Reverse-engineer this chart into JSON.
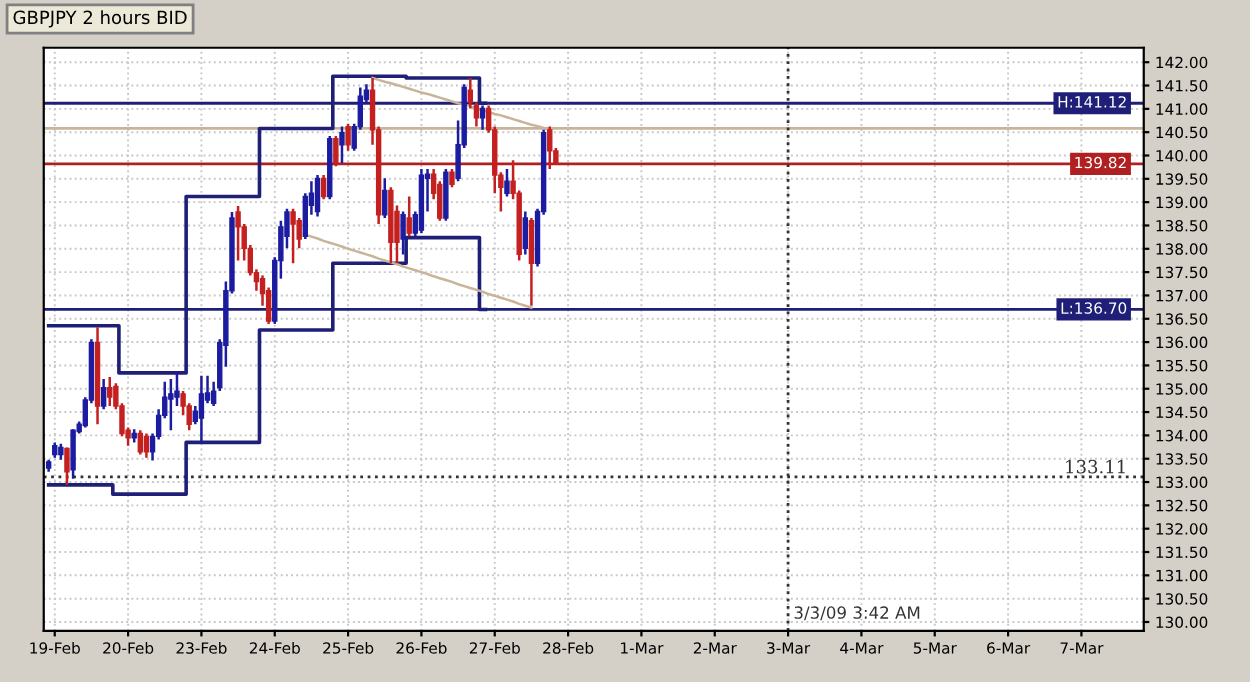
{
  "chart_data": {
    "type": "candlestick",
    "title": "GBPJPY 2 hours BID",
    "categories": [
      null,
      "19-Feb",
      null,
      null,
      null,
      null,
      null,
      null,
      null,
      null,
      null,
      null,
      null,
      "20-Feb",
      null,
      null,
      null,
      null,
      null,
      null,
      null,
      null,
      null,
      null,
      null,
      "23-Feb",
      null,
      null,
      null,
      null,
      null,
      null,
      null,
      null,
      null,
      null,
      null,
      "24-Feb",
      null,
      null,
      null,
      null,
      null,
      null,
      null,
      null,
      null,
      null,
      null,
      "25-Feb",
      null,
      null,
      null,
      null,
      null,
      null,
      null,
      null,
      null,
      null,
      null,
      "26-Feb",
      null,
      null,
      null,
      null,
      null,
      null,
      null,
      null,
      null,
      null,
      null,
      "27-Feb",
      null,
      null,
      null,
      null,
      null,
      null,
      null,
      null,
      null,
      null,
      null,
      "28-Feb",
      null,
      null,
      null,
      null,
      null,
      null,
      null,
      null,
      null,
      null,
      null,
      "1-Mar",
      null,
      null,
      null,
      null,
      null,
      null,
      null,
      null,
      null,
      null,
      null,
      "2-Mar",
      null,
      null,
      null,
      null,
      null,
      null,
      null,
      null,
      null,
      null,
      null,
      "3-Mar",
      null,
      null,
      null,
      null,
      null,
      null,
      null,
      null,
      null,
      null,
      null,
      "4-Mar",
      null,
      null,
      null,
      null,
      null,
      null,
      null,
      null,
      null,
      null,
      null,
      "5-Mar",
      null,
      null,
      null,
      null,
      null,
      null,
      null,
      null,
      null,
      null,
      null,
      "6-Mar",
      null,
      null,
      null,
      null,
      null,
      null,
      null,
      null,
      null,
      null,
      null,
      "7-Mar",
      null,
      null,
      null,
      null,
      null,
      null,
      null,
      null,
      null,
      null
    ],
    "ohlc": [
      [
        133.3,
        133.48,
        133.22,
        133.43
      ],
      [
        133.59,
        133.85,
        133.52,
        133.78
      ],
      [
        133.59,
        133.82,
        133.48,
        133.74
      ],
      [
        133.72,
        133.74,
        132.94,
        133.22
      ],
      [
        133.26,
        134.13,
        133.07,
        134.11
      ],
      [
        134.08,
        134.3,
        134.04,
        134.24
      ],
      [
        134.21,
        134.82,
        134.17,
        134.76
      ],
      [
        134.76,
        136.06,
        134.69,
        135.99
      ],
      [
        135.99,
        136.32,
        134.24,
        134.63
      ],
      [
        134.63,
        135.21,
        134.56,
        135.02
      ],
      [
        135.02,
        135.25,
        134.63,
        134.82
      ],
      [
        135.05,
        135.12,
        134.56,
        134.63
      ],
      [
        134.63,
        134.69,
        133.98,
        134.04
      ],
      [
        134.11,
        134.17,
        133.78,
        133.95
      ],
      [
        133.95,
        134.13,
        133.85,
        134.04
      ],
      [
        134.04,
        134.11,
        133.59,
        133.65
      ],
      [
        133.98,
        134.04,
        133.52,
        133.65
      ],
      [
        133.65,
        134.04,
        133.46,
        133.98
      ],
      [
        133.98,
        134.56,
        133.91,
        134.43
      ],
      [
        134.43,
        135.15,
        134.37,
        134.82
      ],
      [
        134.78,
        135.21,
        134.11,
        134.89
      ],
      [
        134.82,
        135.34,
        134.63,
        134.95
      ],
      [
        134.89,
        134.95,
        134.43,
        134.63
      ],
      [
        134.63,
        134.69,
        134.11,
        134.24
      ],
      [
        134.3,
        134.63,
        134.24,
        134.52
      ],
      [
        134.37,
        135.28,
        133.85,
        134.89
      ],
      [
        134.76,
        135.28,
        134.69,
        134.91
      ],
      [
        134.69,
        135.15,
        134.63,
        134.95
      ],
      [
        135.02,
        136.06,
        134.95,
        135.99
      ],
      [
        135.93,
        137.3,
        135.47,
        137.1
      ],
      [
        137.1,
        138.79,
        137.04,
        138.66
      ],
      [
        138.79,
        138.92,
        137.75,
        138.47
      ],
      [
        138.47,
        138.53,
        137.75,
        138.01
      ],
      [
        138.01,
        138.08,
        137.43,
        137.49
      ],
      [
        137.49,
        137.56,
        137.1,
        137.3
      ],
      [
        137.36,
        137.43,
        136.78,
        137.04
      ],
      [
        137.1,
        137.17,
        136.39,
        136.45
      ],
      [
        136.45,
        137.82,
        136.39,
        137.75
      ],
      [
        137.75,
        138.6,
        137.36,
        138.47
      ],
      [
        138.27,
        138.86,
        138.01,
        138.79
      ],
      [
        138.79,
        138.86,
        137.69,
        138.53
      ],
      [
        138.6,
        138.66,
        138.01,
        138.21
      ],
      [
        138.27,
        139.19,
        138.21,
        139.12
      ],
      [
        138.93,
        139.45,
        138.73,
        139.19
      ],
      [
        138.8,
        139.58,
        138.69,
        139.51
      ],
      [
        139.51,
        139.58,
        139.06,
        139.12
      ],
      [
        139.12,
        140.42,
        139.06,
        140.36
      ],
      [
        140.36,
        140.42,
        139.77,
        139.84
      ],
      [
        140.23,
        140.62,
        139.84,
        140.49
      ],
      [
        140.62,
        140.68,
        140.1,
        140.23
      ],
      [
        140.16,
        140.68,
        140.1,
        140.62
      ],
      [
        140.62,
        141.46,
        140.55,
        141.27
      ],
      [
        141.2,
        141.53,
        141.14,
        141.4
      ],
      [
        141.4,
        141.66,
        140.23,
        140.55
      ],
      [
        140.55,
        140.62,
        138.53,
        138.73
      ],
      [
        138.73,
        139.51,
        138.66,
        139.25
      ],
      [
        139.25,
        139.32,
        137.69,
        138.14
      ],
      [
        138.8,
        138.93,
        137.69,
        138.14
      ],
      [
        138.21,
        138.8,
        137.88,
        138.73
      ],
      [
        138.66,
        139.12,
        138.27,
        138.34
      ],
      [
        138.34,
        138.8,
        138.27,
        138.73
      ],
      [
        138.4,
        139.71,
        138.34,
        139.58
      ],
      [
        139.51,
        139.71,
        138.8,
        139.6
      ],
      [
        139.6,
        139.71,
        139.06,
        139.19
      ],
      [
        139.38,
        139.45,
        138.6,
        138.66
      ],
      [
        138.66,
        139.71,
        138.6,
        139.64
      ],
      [
        139.64,
        139.71,
        139.32,
        139.38
      ],
      [
        139.51,
        140.75,
        139.45,
        140.23
      ],
      [
        140.23,
        141.53,
        140.16,
        141.46
      ],
      [
        141.4,
        141.66,
        141.01,
        141.14
      ],
      [
        141.07,
        141.14,
        140.62,
        140.81
      ],
      [
        140.81,
        141.07,
        140.55,
        141.01
      ],
      [
        141.01,
        141.07,
        140.49,
        140.55
      ],
      [
        140.55,
        140.62,
        139.19,
        139.58
      ],
      [
        139.58,
        139.64,
        138.8,
        139.32
      ],
      [
        139.19,
        139.71,
        139.12,
        139.45
      ],
      [
        139.45,
        139.9,
        139.06,
        139.19
      ],
      [
        139.19,
        139.25,
        137.75,
        137.88
      ],
      [
        138.01,
        138.8,
        137.88,
        138.66
      ],
      [
        138.6,
        138.66,
        136.78,
        137.69
      ],
      [
        137.69,
        138.86,
        137.62,
        138.8
      ],
      [
        138.8,
        140.55,
        138.73,
        140.49
      ],
      [
        140.55,
        140.62,
        139.71,
        140.1
      ],
      [
        140.1,
        140.16,
        139.8,
        139.82
      ],
      null,
      null,
      null,
      null,
      null,
      null,
      null,
      null,
      null,
      null,
      null,
      null,
      null,
      null,
      null,
      null,
      null,
      null,
      null,
      null,
      null,
      null,
      null,
      null,
      null,
      null,
      null,
      null,
      null,
      null,
      null,
      null,
      null,
      null,
      null,
      null,
      null,
      null,
      null,
      null,
      null,
      null,
      null,
      null,
      null,
      null,
      null,
      null,
      null,
      null,
      null,
      null,
      null,
      null,
      null,
      null,
      null,
      null,
      null,
      null,
      null,
      null,
      null,
      null,
      null,
      null,
      null,
      null,
      null,
      null,
      null,
      null,
      null,
      null,
      null,
      null,
      null,
      null,
      null,
      null,
      null,
      null,
      null,
      null,
      null,
      null,
      null,
      null,
      null,
      null,
      null,
      null,
      null,
      null,
      null,
      null
    ],
    "colors": [
      "#1c1ca0",
      "#1c1ca0",
      "#1c1ca0",
      "#c42020",
      "#1c1ca0",
      "#1c1ca0",
      "#1c1ca0",
      "#1c1ca0",
      "#c42020",
      "#1c1ca0",
      "#c42020",
      "#c42020",
      "#c42020",
      "#c42020",
      "#1c1ca0",
      "#c42020",
      "#c42020",
      "#1c1ca0",
      "#1c1ca0",
      "#1c1ca0",
      "#1c1ca0",
      "#1c1ca0",
      "#c42020",
      "#c42020",
      "#1c1ca0",
      "#1c1ca0",
      "#1c1ca0",
      "#1c1ca0",
      "#1c1ca0",
      "#1c1ca0",
      "#1c1ca0",
      "#c42020",
      "#c42020",
      "#c42020",
      "#c42020",
      "#c42020",
      "#c42020",
      "#1c1ca0",
      "#1c1ca0",
      "#1c1ca0",
      "#c42020",
      "#c42020",
      "#1c1ca0",
      "#1c1ca0",
      "#1c1ca0",
      "#c42020",
      "#1c1ca0",
      "#c42020",
      "#1c1ca0",
      "#c42020",
      "#1c1ca0",
      "#1c1ca0",
      "#1c1ca0",
      "#c42020",
      "#c42020",
      "#1c1ca0",
      "#c42020",
      "#c42020",
      "#1c1ca0",
      "#c42020",
      "#1c1ca0",
      "#1c1ca0",
      "#1c1ca0",
      "#c42020",
      "#c42020",
      "#1c1ca0",
      "#c42020",
      "#1c1ca0",
      "#1c1ca0",
      "#c42020",
      "#c42020",
      "#1c1ca0",
      "#c42020",
      "#c42020",
      "#c42020",
      "#1c1ca0",
      "#c42020",
      "#c42020",
      "#1c1ca0",
      "#c42020",
      "#1c1ca0",
      "#1c1ca0",
      "#c42020",
      "#c42020",
      null,
      null,
      null,
      null,
      null,
      null,
      null,
      null,
      null,
      null,
      null,
      null,
      null,
      null,
      null,
      null,
      null,
      null,
      null,
      null,
      null,
      null,
      null,
      null,
      null,
      null,
      null,
      null,
      null,
      null,
      null,
      null,
      null,
      null,
      null,
      null,
      null,
      null,
      null,
      null,
      null,
      null,
      null,
      null,
      null,
      null,
      null,
      null,
      null,
      null,
      null,
      null,
      null,
      null,
      null,
      null,
      null,
      null,
      null,
      null,
      null,
      null,
      null,
      null,
      null,
      null,
      null,
      null,
      null,
      null,
      null,
      null,
      null,
      null,
      null,
      null,
      null,
      null,
      null,
      null,
      null,
      null,
      null,
      null,
      null,
      null,
      null,
      null,
      null,
      null,
      null,
      null,
      null,
      null,
      null,
      null
    ],
    "series": [
      {
        "type": "step",
        "color": "#1f1f78",
        "values": [
          136.35,
          136.35,
          136.35,
          136.35,
          136.35,
          136.35,
          136.35,
          136.35,
          136.35,
          136.35,
          136.35,
          136.35,
          135.34,
          135.34,
          135.34,
          135.34,
          135.34,
          135.34,
          135.34,
          135.34,
          135.34,
          135.34,
          135.34,
          139.12,
          139.12,
          139.12,
          139.12,
          139.12,
          139.12,
          139.12,
          139.12,
          139.12,
          139.12,
          139.12,
          139.12,
          140.58,
          140.58,
          140.58,
          140.58,
          140.58,
          140.58,
          140.58,
          140.58,
          140.58,
          140.58,
          140.58,
          140.58,
          141.7,
          141.7,
          141.7,
          141.7,
          141.7,
          141.7,
          141.7,
          141.7,
          141.7,
          141.7,
          141.7,
          141.7,
          141.66,
          141.66,
          141.66,
          141.66,
          141.66,
          141.66,
          141.66,
          141.66,
          141.66,
          141.66,
          141.66,
          141.66,
          141.12,
          null,
          null,
          null,
          null,
          null,
          null,
          null,
          null,
          null,
          null,
          null,
          null,
          null,
          null,
          null,
          null,
          null,
          null,
          null,
          null,
          null,
          null,
          null,
          null,
          null,
          null,
          null,
          null,
          null,
          null,
          null,
          null,
          null,
          null,
          null,
          null,
          null,
          null,
          null,
          null,
          null,
          null,
          null,
          null,
          null,
          null,
          null,
          null,
          null,
          null,
          null,
          null,
          null,
          null,
          null,
          null,
          null,
          null,
          null,
          null,
          null,
          null,
          null,
          null,
          null,
          null,
          null,
          null,
          null,
          null,
          null,
          null,
          null,
          null,
          null,
          null,
          null,
          null,
          null,
          null,
          null,
          null,
          null,
          null,
          null,
          null,
          null,
          null,
          null,
          null,
          null,
          null,
          null,
          null,
          null,
          null,
          null,
          null,
          null,
          null,
          null,
          null,
          null,
          null,
          null,
          null,
          null,
          null
        ]
      },
      {
        "type": "step",
        "color": "#1f1f78",
        "values": [
          132.94,
          132.94,
          132.94,
          132.94,
          132.94,
          132.94,
          132.94,
          132.94,
          132.94,
          132.94,
          132.94,
          132.74,
          132.74,
          132.74,
          132.74,
          132.74,
          132.74,
          132.74,
          132.74,
          132.74,
          132.74,
          132.74,
          132.74,
          133.85,
          133.85,
          133.85,
          133.85,
          133.85,
          133.85,
          133.85,
          133.85,
          133.85,
          133.85,
          133.85,
          133.85,
          136.26,
          136.26,
          136.26,
          136.26,
          136.26,
          136.26,
          136.26,
          136.26,
          136.26,
          136.26,
          136.26,
          136.26,
          137.69,
          137.69,
          137.69,
          137.69,
          137.69,
          137.69,
          137.69,
          137.69,
          137.69,
          137.69,
          137.69,
          137.69,
          138.24,
          138.24,
          138.24,
          138.24,
          138.24,
          138.24,
          138.24,
          138.24,
          138.24,
          138.24,
          138.24,
          138.24,
          136.7,
          null,
          null,
          null,
          null,
          null,
          null,
          null,
          null,
          null,
          null,
          null,
          null,
          null,
          null,
          null,
          null,
          null,
          null,
          null,
          null,
          null,
          null,
          null,
          null,
          null,
          null,
          null,
          null,
          null,
          null,
          null,
          null,
          null,
          null,
          null,
          null,
          null,
          null,
          null,
          null,
          null,
          null,
          null,
          null,
          null,
          null,
          null,
          null,
          null,
          null,
          null,
          null,
          null,
          null,
          null,
          null,
          null,
          null,
          null,
          null,
          null,
          null,
          null,
          null,
          null,
          null,
          null,
          null,
          null,
          null,
          null,
          null,
          null,
          null,
          null,
          null,
          null,
          null,
          null,
          null,
          null,
          null,
          null,
          null,
          null,
          null,
          null,
          null,
          null,
          null,
          null,
          null,
          null,
          null,
          null,
          null,
          null,
          null,
          null,
          null,
          null,
          null,
          null,
          null,
          null,
          null,
          null,
          null
        ]
      },
      {
        "type": "line",
        "color": "#c8b49a",
        "values": [
          null,
          null,
          null,
          null,
          null,
          null,
          null,
          null,
          null,
          null,
          null,
          null,
          null,
          null,
          null,
          null,
          null,
          null,
          null,
          null,
          null,
          null,
          null,
          null,
          null,
          null,
          null,
          null,
          null,
          null,
          null,
          null,
          null,
          null,
          null,
          null,
          null,
          null,
          null,
          null,
          null,
          null,
          null,
          null,
          null,
          null,
          null,
          null,
          null,
          null,
          null,
          null,
          null,
          141.66,
          141.62,
          141.58,
          141.55,
          141.51,
          141.47,
          141.43,
          141.39,
          141.35,
          141.32,
          141.28,
          141.24,
          141.2,
          141.16,
          141.12,
          141.09,
          141.05,
          141.01,
          140.97,
          140.93,
          140.89,
          140.86,
          140.82,
          140.78,
          140.74,
          140.7,
          140.66,
          140.63,
          140.59,
          140.55,
          null,
          null,
          null,
          null,
          null,
          null,
          null,
          null,
          null,
          null,
          null,
          null,
          null,
          null,
          null,
          null,
          null,
          null,
          null,
          null,
          null,
          null,
          null,
          null,
          null,
          null,
          null,
          null,
          null,
          null,
          null,
          null,
          null,
          null,
          null,
          null,
          null,
          null,
          null,
          null,
          null,
          null,
          null,
          null,
          null,
          null,
          null,
          null,
          null,
          null,
          null,
          null,
          null,
          null,
          null,
          null,
          null,
          null,
          null,
          null,
          null,
          null,
          null,
          null,
          null,
          null,
          null,
          null,
          null,
          null,
          null,
          null,
          null,
          null,
          null,
          null,
          null,
          null,
          null,
          null,
          null,
          null,
          null,
          null,
          null,
          null,
          null,
          null,
          null,
          null,
          null,
          null,
          null,
          null,
          null,
          null,
          null
        ]
      },
      {
        "type": "line",
        "color": "#c8b49a",
        "values": [
          null,
          null,
          null,
          null,
          null,
          null,
          null,
          null,
          null,
          null,
          null,
          null,
          null,
          null,
          null,
          null,
          null,
          null,
          null,
          null,
          null,
          null,
          null,
          null,
          null,
          null,
          null,
          null,
          null,
          null,
          null,
          null,
          null,
          null,
          null,
          null,
          null,
          null,
          null,
          null,
          null,
          null,
          138.3,
          138.26,
          138.22,
          138.17,
          138.13,
          138.09,
          138.05,
          138.0,
          137.96,
          137.92,
          137.88,
          137.84,
          137.79,
          137.75,
          137.71,
          137.67,
          137.62,
          137.58,
          137.54,
          137.5,
          137.46,
          137.41,
          137.37,
          137.33,
          137.29,
          137.24,
          137.2,
          137.16,
          137.12,
          137.08,
          137.03,
          136.99,
          136.95,
          136.91,
          136.87,
          136.82,
          136.78,
          136.74,
          null,
          null,
          null,
          null,
          null,
          null,
          null,
          null,
          null,
          null,
          null,
          null,
          null,
          null,
          null,
          null,
          null,
          null,
          null,
          null,
          null,
          null,
          null,
          null,
          null,
          null,
          null,
          null,
          null,
          null,
          null,
          null,
          null,
          null,
          null,
          null,
          null,
          null,
          null,
          null,
          null,
          null,
          null,
          null,
          null,
          null,
          null,
          null,
          null,
          null,
          null,
          null,
          null,
          null,
          null,
          null,
          null,
          null,
          null,
          null,
          null,
          null,
          null,
          null,
          null,
          null,
          null,
          null,
          null,
          null,
          null,
          null,
          null,
          null,
          null,
          null,
          null,
          null,
          null,
          null,
          null,
          null,
          null,
          null,
          null,
          null,
          null,
          null,
          null,
          null,
          null,
          null,
          null,
          null,
          null,
          null,
          null,
          null,
          null,
          null
        ]
      }
    ],
    "ref_lines": [
      {
        "axis": "y",
        "value": 141.12,
        "label": "H:141.12",
        "color": "#1f1f78"
      },
      {
        "axis": "y",
        "value": 136.7,
        "label": "L:136.70",
        "color": "#1f1f78"
      },
      {
        "axis": "y",
        "value": 140.58,
        "color": "#c8b49a"
      },
      {
        "axis": "y",
        "value": 139.82,
        "label": "139.82",
        "color": "#b02020"
      },
      {
        "axis": "y",
        "value": 133.11,
        "label": "133.11",
        "color": "#333333",
        "line_style": "dotted"
      },
      {
        "axis": "x",
        "value": "3-Mar",
        "label": "3/3/09 3:42 AM",
        "color": "#333333",
        "line_style": "dotted"
      }
    ],
    "ylim": [
      129.81,
      142.31
    ],
    "yticks": [
      {
        "value": 130,
        "label": "130.00"
      },
      {
        "value": 130.5,
        "label": "130.50"
      },
      {
        "value": 131,
        "label": "131.00"
      },
      {
        "value": 131.5,
        "label": "131.50"
      },
      {
        "value": 132,
        "label": "132.00"
      },
      {
        "value": 132.5,
        "label": "132.50"
      },
      {
        "value": 133,
        "label": "133.00"
      },
      {
        "value": 133.5,
        "label": "133.50"
      },
      {
        "value": 134,
        "label": "134.00"
      },
      {
        "value": 134.5,
        "label": "134.50"
      },
      {
        "value": 135,
        "label": "135.00"
      },
      {
        "value": 135.5,
        "label": "135.50"
      },
      {
        "value": 136,
        "label": "136.00"
      },
      {
        "value": 136.5,
        "label": "136.50"
      },
      {
        "value": 137,
        "label": "137.00"
      },
      {
        "value": 137.5,
        "label": "137.50"
      },
      {
        "value": 138,
        "label": "138.00"
      },
      {
        "value": 138.5,
        "label": "138.50"
      },
      {
        "value": 139,
        "label": "139.00"
      },
      {
        "value": 139.5,
        "label": "139.50"
      },
      {
        "value": 140,
        "label": "140.00"
      },
      {
        "value": 140.5,
        "label": "140.50"
      },
      {
        "value": 141,
        "label": "141.00"
      },
      {
        "value": 141.5,
        "label": "141.50"
      },
      {
        "value": 142,
        "label": "142.00"
      }
    ],
    "grid": true
  }
}
